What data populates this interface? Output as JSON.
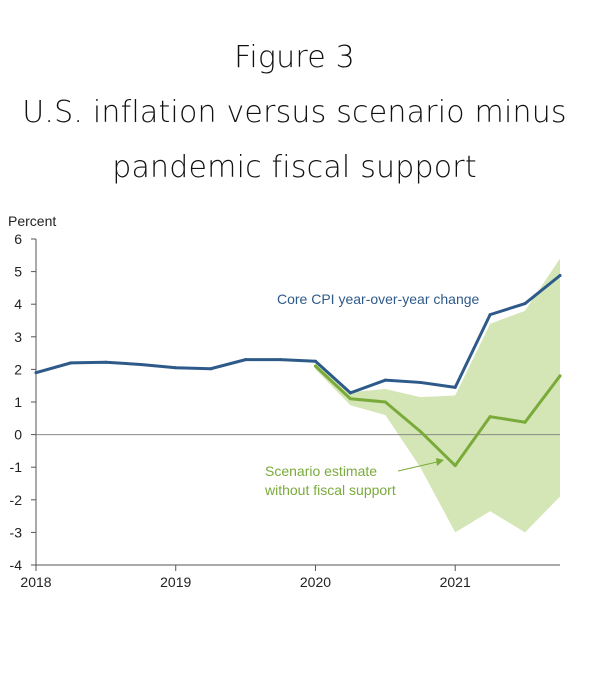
{
  "figure": {
    "label": "Figure 3",
    "title_line1": "U.S. inflation versus scenario minus",
    "title_line2": "pandemic fiscal support"
  },
  "colors": {
    "cpi_line": "#2e5a8a",
    "scenario_line": "#7aab3a",
    "band_fill": "#d4e6b5",
    "axis": "#555555",
    "zero_line": "#888888"
  },
  "chart_data": {
    "type": "line",
    "ylabel": "Percent",
    "ylim": [
      -4,
      6
    ],
    "yticks": [
      6,
      5,
      4,
      3,
      2,
      1,
      0,
      -1,
      -2,
      -3,
      -4
    ],
    "xlim": [
      2018.0,
      2021.75
    ],
    "xticks": [
      {
        "value": 2018,
        "label": "2018"
      },
      {
        "value": 2019,
        "label": "2019"
      },
      {
        "value": 2020,
        "label": "2020"
      },
      {
        "value": 2021,
        "label": "2021"
      }
    ],
    "grid": false,
    "series": [
      {
        "name": "Core CPI year-over-year change",
        "x": [
          2018.0,
          2018.25,
          2018.5,
          2018.75,
          2019.0,
          2019.25,
          2019.5,
          2019.75,
          2020.0,
          2020.25,
          2020.5,
          2020.75,
          2021.0,
          2021.25,
          2021.5,
          2021.75
        ],
        "values": [
          1.9,
          2.2,
          2.22,
          2.15,
          2.05,
          2.02,
          2.3,
          2.3,
          2.25,
          1.28,
          1.67,
          1.6,
          1.45,
          3.68,
          4.02,
          4.88
        ]
      },
      {
        "name": "Scenario estimate without fiscal support",
        "x": [
          2020.0,
          2020.25,
          2020.5,
          2020.75,
          2021.0,
          2021.25,
          2021.5,
          2021.75
        ],
        "values": [
          2.1,
          1.1,
          1.0,
          0.1,
          -0.95,
          0.55,
          0.38,
          1.8
        ]
      }
    ],
    "band": {
      "x": [
        2020.0,
        2020.25,
        2020.5,
        2020.75,
        2021.0,
        2021.25,
        2021.5,
        2021.75
      ],
      "upper": [
        2.2,
        1.3,
        1.4,
        1.15,
        1.2,
        3.4,
        3.8,
        5.4
      ],
      "lower": [
        2.0,
        0.9,
        0.6,
        -1.0,
        -3.0,
        -2.35,
        -3.0,
        -1.9
      ]
    },
    "annotations": [
      {
        "text": "Core CPI year-over-year change"
      },
      {
        "text_line1": "Scenario estimate",
        "text_line2": "without fiscal support"
      }
    ]
  }
}
